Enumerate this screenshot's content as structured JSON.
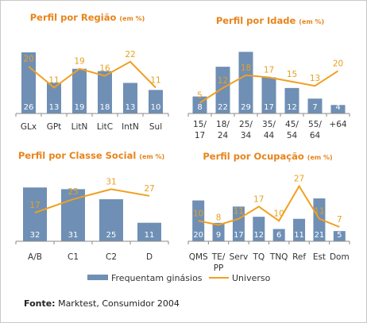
{
  "colors": {
    "bar": "#6f8fb5",
    "line": "#f0a020",
    "title": "#e8841a",
    "axis": "#888888"
  },
  "chart_data": [
    {
      "type": "bar",
      "title": "Perfil por Região",
      "unit": "(em %)",
      "categories": [
        "GLx",
        "GPt",
        "LitN",
        "LitC",
        "IntN",
        "Sul"
      ],
      "series": [
        {
          "name": "Frequentam ginásios",
          "type": "bar",
          "values": [
            26,
            13,
            19,
            18,
            13,
            10
          ]
        },
        {
          "name": "Universo",
          "type": "line",
          "values": [
            20,
            11,
            19,
            16,
            22,
            11
          ]
        }
      ],
      "ylim": [
        0,
        28
      ]
    },
    {
      "type": "bar",
      "title": "Perfil por Idade",
      "unit": "(em %)",
      "categories": [
        "15/\n17",
        "18/\n24",
        "25/\n34",
        "35/\n44",
        "45/\n54",
        "55/\n64",
        "+64"
      ],
      "series": [
        {
          "name": "Frequentam ginásios",
          "type": "bar",
          "values": [
            8,
            22,
            29,
            17,
            12,
            7,
            4
          ]
        },
        {
          "name": "Universo",
          "type": "line",
          "values": [
            5,
            12,
            18,
            17,
            15,
            13,
            20
          ]
        }
      ],
      "ylim": [
        0,
        31
      ]
    },
    {
      "type": "bar",
      "title": "Perfil por Classe Social",
      "unit": "(em %)",
      "categories": [
        "A/B",
        "C1",
        "C2",
        "D"
      ],
      "series": [
        {
          "name": "Frequentam ginásios",
          "type": "bar",
          "values": [
            32,
            31,
            25,
            11
          ]
        },
        {
          "name": "Universo",
          "type": "line",
          "values": [
            17,
            25,
            31,
            27
          ]
        }
      ],
      "ylim": [
        0,
        34
      ]
    },
    {
      "type": "bar",
      "title": "Perfil por Ocupação",
      "unit": "(em %)",
      "categories": [
        "QMS",
        "TE/\nPP",
        "Serv",
        "TQ",
        "TNQ",
        "Ref",
        "Est",
        "Dom"
      ],
      "series": [
        {
          "name": "Frequentam ginásios",
          "type": "bar",
          "values": [
            20,
            9,
            17,
            12,
            6,
            11,
            21,
            5
          ]
        },
        {
          "name": "Universo",
          "type": "line",
          "values": [
            10,
            8,
            11,
            17,
            10,
            27,
            11,
            7
          ]
        }
      ],
      "ylim": [
        0,
        28
      ]
    }
  ],
  "legend": {
    "bar_label": "Frequentam ginásios",
    "line_label": "Universo"
  },
  "source": {
    "label": "Fonte:",
    "text": "Marktest, Consumidor 2004"
  }
}
